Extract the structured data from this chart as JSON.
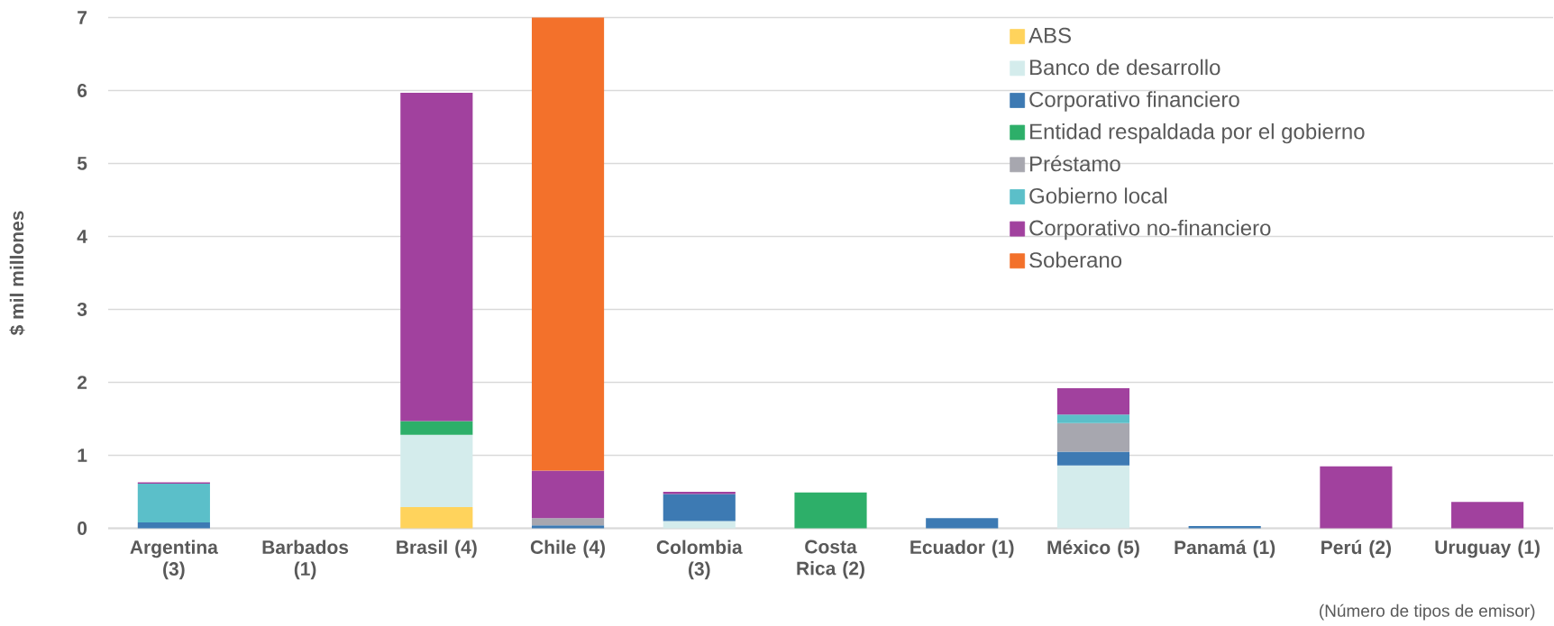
{
  "chart_data": {
    "type": "bar",
    "stacked": true,
    "categories": [
      "Argentina (3)",
      "Barbados (1)",
      "Brasil (4)",
      "Chile (4)",
      "Colombia (3)",
      "Costa Rica (2)",
      "Ecuador (1)",
      "México (5)",
      "Panamá (1)",
      "Perú (2)",
      "Uruguay (1)"
    ],
    "series": [
      {
        "name": "ABS",
        "color": "#ffd35c",
        "values": [
          null,
          null,
          0.29,
          null,
          null,
          null,
          null,
          null,
          null,
          null,
          null
        ]
      },
      {
        "name": "Banco de desarrollo",
        "color": "#d4ecec",
        "values": [
          null,
          null,
          0.99,
          null,
          0.1,
          null,
          null,
          0.86,
          null,
          null,
          null
        ]
      },
      {
        "name": "Corporativo financiero",
        "color": "#3d7ab3",
        "values": [
          0.08,
          null,
          null,
          0.04,
          0.37,
          null,
          0.14,
          0.19,
          0.03,
          null,
          null
        ]
      },
      {
        "name": "Entidad respaldada por el gobierno",
        "color": "#2daf69",
        "values": [
          null,
          null,
          0.19,
          null,
          null,
          0.49,
          null,
          null,
          null,
          null,
          null
        ]
      },
      {
        "name": "Préstamo",
        "color": "#a7a7af",
        "values": [
          null,
          null,
          null,
          0.1,
          null,
          null,
          null,
          0.39,
          null,
          null,
          null
        ]
      },
      {
        "name": "Gobierno local",
        "color": "#5bbfc9",
        "values": [
          0.53,
          null,
          null,
          null,
          null,
          null,
          null,
          0.12,
          null,
          null,
          null
        ]
      },
      {
        "name": "Corporativo no-financiero",
        "color": "#a1419e",
        "values": [
          0.02,
          null,
          4.5,
          0.65,
          0.03,
          null,
          null,
          0.36,
          null,
          0.85,
          0.36
        ]
      },
      {
        "name": "Soberano",
        "color": "#f3712b",
        "values": [
          null,
          null,
          null,
          6.21,
          null,
          null,
          null,
          null,
          null,
          null,
          null
        ]
      }
    ],
    "ylabel": "$ mil millones",
    "ylim": [
      0,
      7
    ],
    "yticks": [
      0,
      1,
      2,
      3,
      4,
      5,
      6,
      7
    ],
    "grid": "y",
    "legend": "top right",
    "annotations": [
      "(Número de tipos de emisor)"
    ]
  }
}
